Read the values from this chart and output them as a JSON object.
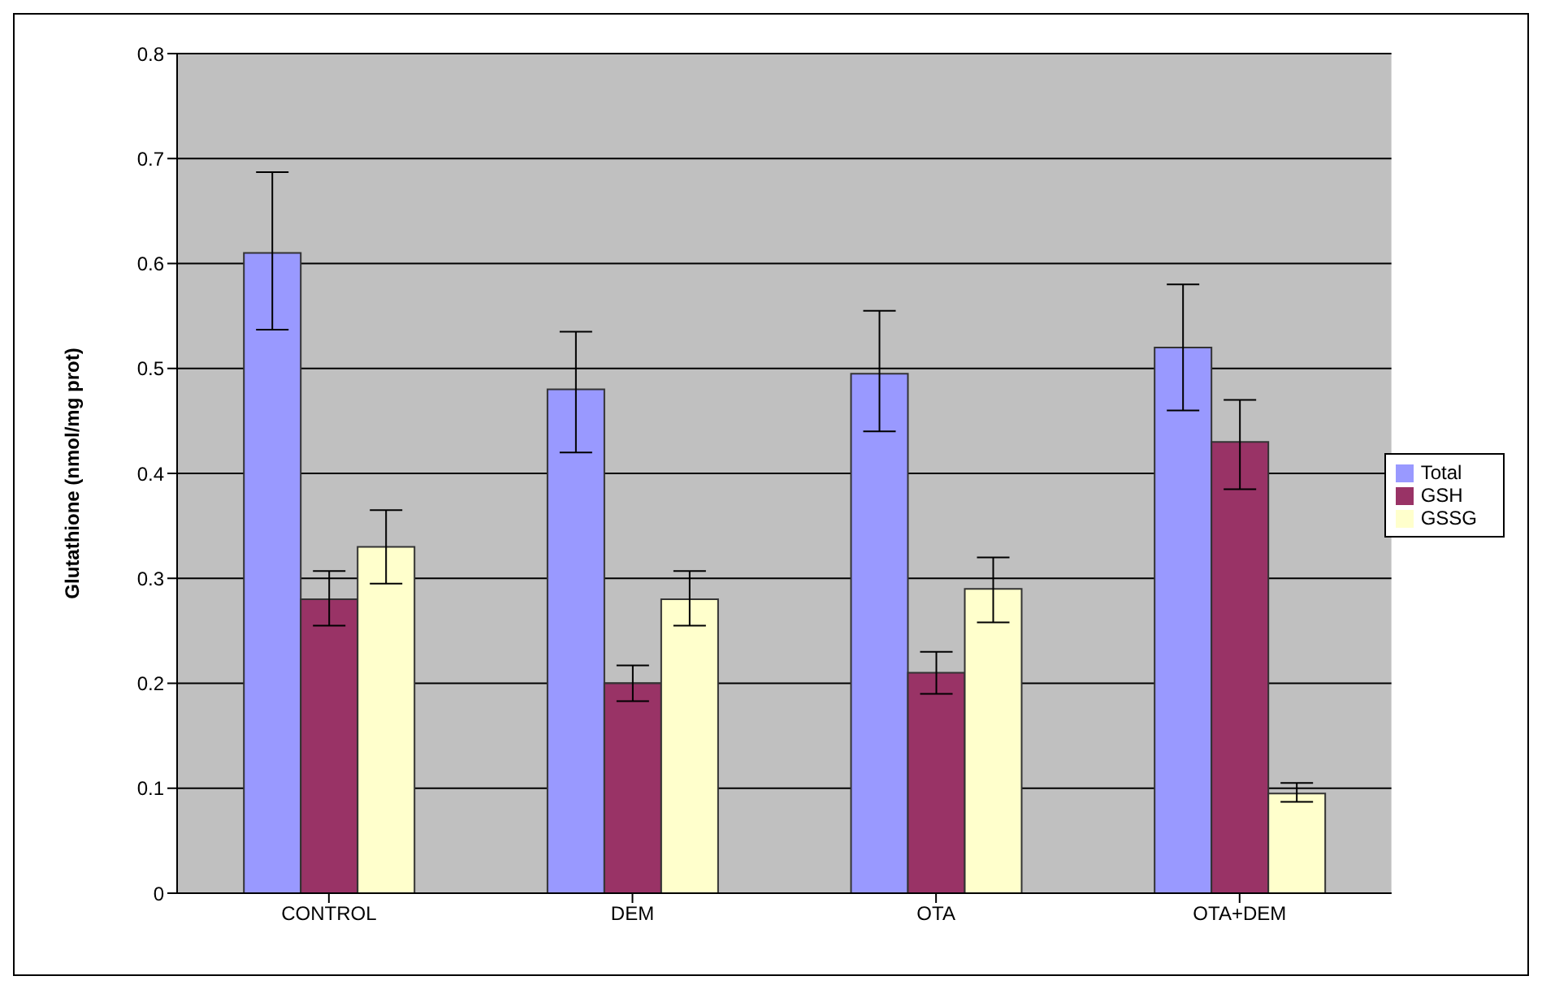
{
  "chart_data": {
    "type": "bar",
    "ylabel": "Glutathione (nmol/mg prot)",
    "categories": [
      "CONTROL",
      "DEM",
      "OTA",
      "OTA+DEM"
    ],
    "series": [
      {
        "name": "Total",
        "color": "#9999ff",
        "values": [
          0.61,
          0.48,
          0.495,
          0.52
        ],
        "errors": [
          [
            0.537,
            0.687
          ],
          [
            0.42,
            0.535
          ],
          [
            0.44,
            0.555
          ],
          [
            0.46,
            0.58
          ]
        ]
      },
      {
        "name": "GSH",
        "color": "#993366",
        "values": [
          0.28,
          0.2,
          0.21,
          0.43
        ],
        "errors": [
          [
            0.255,
            0.307
          ],
          [
            0.183,
            0.217
          ],
          [
            0.19,
            0.23
          ],
          [
            0.385,
            0.47
          ]
        ]
      },
      {
        "name": "GSSG",
        "color": "#ffffcc",
        "values": [
          0.33,
          0.28,
          0.29,
          0.095
        ],
        "errors": [
          [
            0.295,
            0.365
          ],
          [
            0.255,
            0.307
          ],
          [
            0.258,
            0.32
          ],
          [
            0.087,
            0.105
          ]
        ]
      }
    ],
    "ylim": [
      0,
      0.8
    ],
    "yticks": [
      0,
      0.1,
      0.2,
      0.3,
      0.4,
      0.5,
      0.6,
      0.7,
      0.8
    ],
    "grid": "y",
    "legend": "right"
  }
}
